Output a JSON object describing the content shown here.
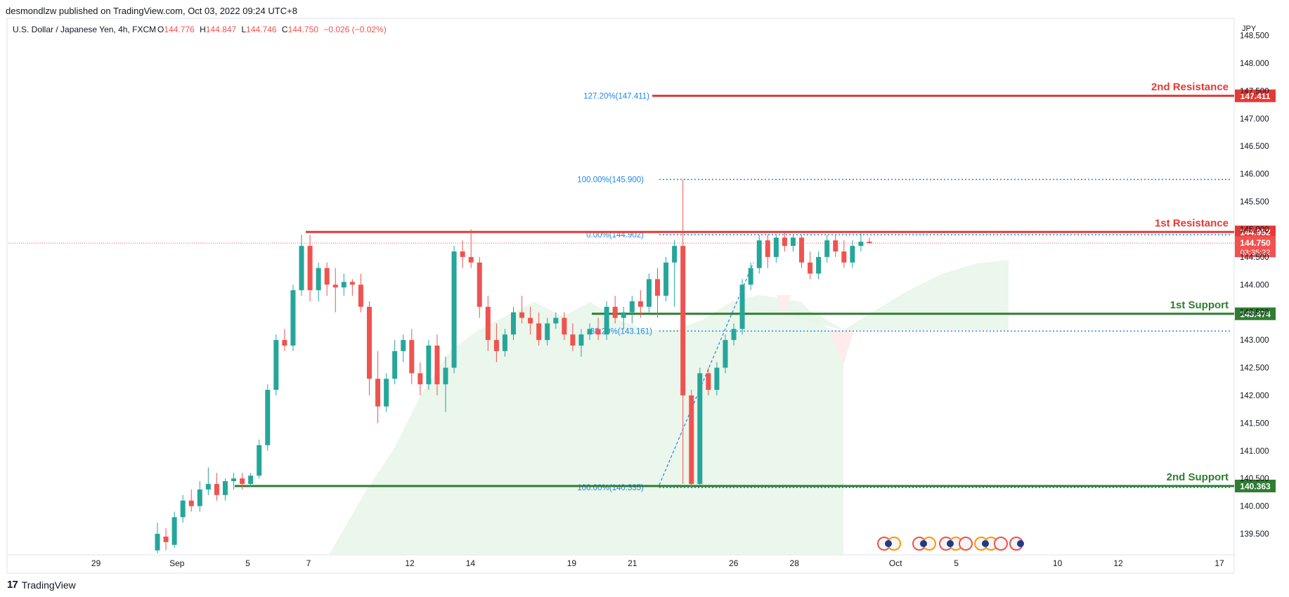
{
  "header": {
    "published_by": "desmondlzw published on TradingView.com, Oct 03, 2022 09:24 UTC+8"
  },
  "legend": {
    "symbol": "U.S. Dollar / Japanese Yen, 4h, FXCM",
    "o_label": "O",
    "o": "144.776",
    "h_label": "H",
    "h": "144.847",
    "l_label": "L",
    "l": "144.746",
    "c_label": "C",
    "c": "144.750",
    "change": "−0.026 (−0.02%)"
  },
  "watermark": {
    "text": "TradingView"
  },
  "colors": {
    "up": "#26a69a",
    "down": "#ef5350",
    "resistance": "#e53935",
    "support": "#2e7d32",
    "fib": "#1e88e5",
    "cloud_green": "#e8f5e9",
    "cloud_red": "#fdecea"
  },
  "chart_data": {
    "type": "candlestick",
    "title": "U.S. Dollar / Japanese Yen, 4h, FXCM",
    "y_axis_unit": "JPY",
    "ylim": [
      139.2,
      148.55
    ],
    "y_ticks": [
      "139.500",
      "140.000",
      "140.500",
      "141.000",
      "141.500",
      "142.000",
      "142.500",
      "143.000",
      "143.500",
      "144.000",
      "144.500",
      "145.000",
      "145.500",
      "146.000",
      "146.500",
      "147.000",
      "147.500",
      "148.000",
      "148.500"
    ],
    "x_ticks": [
      {
        "label": "29",
        "slot": 4
      },
      {
        "label": "Sep",
        "slot": 12
      },
      {
        "label": "5",
        "slot": 19
      },
      {
        "label": "7",
        "slot": 25
      },
      {
        "label": "12",
        "slot": 35
      },
      {
        "label": "14",
        "slot": 41
      },
      {
        "label": "19",
        "slot": 51
      },
      {
        "label": "21",
        "slot": 57
      },
      {
        "label": "26",
        "slot": 67
      },
      {
        "label": "28",
        "slot": 73
      },
      {
        "label": "Oct",
        "slot": 83
      },
      {
        "label": "5",
        "slot": 89
      },
      {
        "label": "10",
        "slot": 99
      },
      {
        "label": "12",
        "slot": 105
      },
      {
        "label": "17",
        "slot": 115
      }
    ],
    "candles": [
      {
        "o": 139.2,
        "h": 139.7,
        "l": 139.15,
        "c": 139.5
      },
      {
        "o": 139.45,
        "h": 139.6,
        "l": 139.2,
        "c": 139.35
      },
      {
        "o": 139.3,
        "h": 139.9,
        "l": 139.25,
        "c": 139.8
      },
      {
        "o": 139.8,
        "h": 140.2,
        "l": 139.7,
        "c": 140.1
      },
      {
        "o": 140.1,
        "h": 140.3,
        "l": 139.9,
        "c": 140.0
      },
      {
        "o": 140.0,
        "h": 140.45,
        "l": 139.9,
        "c": 140.3
      },
      {
        "o": 140.3,
        "h": 140.7,
        "l": 140.2,
        "c": 140.4
      },
      {
        "o": 140.4,
        "h": 140.6,
        "l": 140.1,
        "c": 140.2
      },
      {
        "o": 140.2,
        "h": 140.5,
        "l": 140.1,
        "c": 140.45
      },
      {
        "o": 140.45,
        "h": 140.6,
        "l": 140.3,
        "c": 140.5
      },
      {
        "o": 140.5,
        "h": 140.6,
        "l": 140.3,
        "c": 140.4
      },
      {
        "o": 140.4,
        "h": 140.6,
        "l": 140.35,
        "c": 140.55
      },
      {
        "o": 140.55,
        "h": 141.2,
        "l": 140.5,
        "c": 141.1
      },
      {
        "o": 141.1,
        "h": 142.2,
        "l": 141.0,
        "c": 142.1
      },
      {
        "o": 142.1,
        "h": 143.1,
        "l": 142.0,
        "c": 143.0
      },
      {
        "o": 143.0,
        "h": 143.2,
        "l": 142.8,
        "c": 142.9
      },
      {
        "o": 142.9,
        "h": 144.0,
        "l": 142.8,
        "c": 143.9
      },
      {
        "o": 143.9,
        "h": 144.9,
        "l": 143.8,
        "c": 144.7
      },
      {
        "o": 144.7,
        "h": 144.9,
        "l": 143.7,
        "c": 143.9
      },
      {
        "o": 143.9,
        "h": 144.4,
        "l": 143.7,
        "c": 144.3
      },
      {
        "o": 144.3,
        "h": 144.4,
        "l": 143.8,
        "c": 144.0
      },
      {
        "o": 144.0,
        "h": 144.3,
        "l": 143.5,
        "c": 143.95
      },
      {
        "o": 143.95,
        "h": 144.2,
        "l": 143.8,
        "c": 144.05
      },
      {
        "o": 144.05,
        "h": 144.1,
        "l": 143.8,
        "c": 144.0
      },
      {
        "o": 144.0,
        "h": 144.2,
        "l": 143.5,
        "c": 143.6
      },
      {
        "o": 143.6,
        "h": 143.7,
        "l": 142.0,
        "c": 142.3
      },
      {
        "o": 142.3,
        "h": 142.8,
        "l": 141.5,
        "c": 141.8
      },
      {
        "o": 141.8,
        "h": 142.4,
        "l": 141.7,
        "c": 142.3
      },
      {
        "o": 142.3,
        "h": 143.0,
        "l": 142.2,
        "c": 142.8
      },
      {
        "o": 142.8,
        "h": 143.1,
        "l": 142.6,
        "c": 143.0
      },
      {
        "o": 143.0,
        "h": 143.2,
        "l": 142.2,
        "c": 142.4
      },
      {
        "o": 142.4,
        "h": 142.6,
        "l": 142.0,
        "c": 142.2
      },
      {
        "o": 142.2,
        "h": 143.0,
        "l": 142.1,
        "c": 142.9
      },
      {
        "o": 142.9,
        "h": 143.1,
        "l": 142.0,
        "c": 142.2
      },
      {
        "o": 142.2,
        "h": 142.7,
        "l": 141.7,
        "c": 142.5
      },
      {
        "o": 142.5,
        "h": 144.7,
        "l": 142.4,
        "c": 144.6
      },
      {
        "o": 144.6,
        "h": 144.8,
        "l": 144.3,
        "c": 144.5
      },
      {
        "o": 144.5,
        "h": 145.0,
        "l": 144.3,
        "c": 144.4
      },
      {
        "o": 144.4,
        "h": 144.5,
        "l": 143.4,
        "c": 143.6
      },
      {
        "o": 143.6,
        "h": 143.8,
        "l": 142.8,
        "c": 143.0
      },
      {
        "o": 143.0,
        "h": 143.3,
        "l": 142.6,
        "c": 142.8
      },
      {
        "o": 142.8,
        "h": 143.2,
        "l": 142.7,
        "c": 143.1
      },
      {
        "o": 143.1,
        "h": 143.6,
        "l": 143.0,
        "c": 143.5
      },
      {
        "o": 143.5,
        "h": 143.8,
        "l": 143.3,
        "c": 143.4
      },
      {
        "o": 143.4,
        "h": 143.6,
        "l": 143.1,
        "c": 143.3
      },
      {
        "o": 143.3,
        "h": 143.5,
        "l": 142.9,
        "c": 143.0
      },
      {
        "o": 143.0,
        "h": 143.4,
        "l": 142.9,
        "c": 143.3
      },
      {
        "o": 143.3,
        "h": 143.5,
        "l": 143.2,
        "c": 143.4
      },
      {
        "o": 143.4,
        "h": 143.5,
        "l": 143.0,
        "c": 143.1
      },
      {
        "o": 143.1,
        "h": 143.3,
        "l": 142.8,
        "c": 142.9
      },
      {
        "o": 142.9,
        "h": 143.2,
        "l": 142.7,
        "c": 143.1
      },
      {
        "o": 143.1,
        "h": 143.3,
        "l": 143.0,
        "c": 143.2
      },
      {
        "o": 143.2,
        "h": 143.4,
        "l": 143.0,
        "c": 143.1
      },
      {
        "o": 143.1,
        "h": 143.7,
        "l": 143.0,
        "c": 143.6
      },
      {
        "o": 143.6,
        "h": 143.8,
        "l": 143.3,
        "c": 143.4
      },
      {
        "o": 143.4,
        "h": 143.6,
        "l": 143.2,
        "c": 143.5
      },
      {
        "o": 143.5,
        "h": 143.8,
        "l": 143.3,
        "c": 143.7
      },
      {
        "o": 143.7,
        "h": 143.9,
        "l": 143.4,
        "c": 143.6
      },
      {
        "o": 143.6,
        "h": 144.2,
        "l": 143.5,
        "c": 144.1
      },
      {
        "o": 144.1,
        "h": 144.3,
        "l": 143.4,
        "c": 143.8
      },
      {
        "o": 143.8,
        "h": 144.5,
        "l": 143.7,
        "c": 144.4
      },
      {
        "o": 144.4,
        "h": 144.8,
        "l": 143.6,
        "c": 144.7
      },
      {
        "o": 144.7,
        "h": 145.9,
        "l": 140.4,
        "c": 142.0
      },
      {
        "o": 142.0,
        "h": 142.1,
        "l": 140.35,
        "c": 140.4
      },
      {
        "o": 140.4,
        "h": 142.5,
        "l": 140.38,
        "c": 142.4
      },
      {
        "o": 142.4,
        "h": 142.5,
        "l": 142.0,
        "c": 142.1
      },
      {
        "o": 142.1,
        "h": 142.6,
        "l": 142.0,
        "c": 142.5
      },
      {
        "o": 142.5,
        "h": 143.1,
        "l": 142.4,
        "c": 143.0
      },
      {
        "o": 143.0,
        "h": 143.3,
        "l": 142.9,
        "c": 143.2
      },
      {
        "o": 143.2,
        "h": 144.1,
        "l": 143.1,
        "c": 144.0
      },
      {
        "o": 144.0,
        "h": 144.4,
        "l": 143.9,
        "c": 144.3
      },
      {
        "o": 144.3,
        "h": 144.9,
        "l": 144.2,
        "c": 144.8
      },
      {
        "o": 144.8,
        "h": 144.9,
        "l": 144.3,
        "c": 144.5
      },
      {
        "o": 144.5,
        "h": 144.9,
        "l": 144.4,
        "c": 144.85
      },
      {
        "o": 144.85,
        "h": 144.95,
        "l": 144.6,
        "c": 144.7
      },
      {
        "o": 144.7,
        "h": 144.9,
        "l": 144.6,
        "c": 144.85
      },
      {
        "o": 144.85,
        "h": 144.9,
        "l": 144.3,
        "c": 144.4
      },
      {
        "o": 144.4,
        "h": 144.6,
        "l": 144.1,
        "c": 144.2
      },
      {
        "o": 144.2,
        "h": 144.6,
        "l": 144.1,
        "c": 144.5
      },
      {
        "o": 144.5,
        "h": 144.9,
        "l": 144.4,
        "c": 144.8
      },
      {
        "o": 144.8,
        "h": 144.9,
        "l": 144.5,
        "c": 144.6
      },
      {
        "o": 144.6,
        "h": 144.8,
        "l": 144.3,
        "c": 144.4
      },
      {
        "o": 144.4,
        "h": 144.8,
        "l": 144.3,
        "c": 144.7
      },
      {
        "o": 144.7,
        "h": 144.95,
        "l": 144.6,
        "c": 144.776
      },
      {
        "o": 144.776,
        "h": 144.847,
        "l": 144.746,
        "c": 144.75
      }
    ],
    "levels": [
      {
        "name": "2nd Resistance",
        "value": 147.411,
        "label": "147.411",
        "kind": "resistance"
      },
      {
        "name": "1st Resistance",
        "value": 144.952,
        "label": "144.952",
        "kind": "resistance"
      },
      {
        "name": "1st Support",
        "value": 143.474,
        "label": "143.474",
        "kind": "support"
      },
      {
        "name": "2nd Support",
        "value": 140.363,
        "label": "140.363",
        "kind": "support"
      }
    ],
    "last_price": {
      "label": "144.750",
      "countdown": "03:35:22"
    },
    "fibonacci": [
      {
        "label": "127.20%(147.411)",
        "value": 147.411
      },
      {
        "label": "100.00%(145.900)",
        "value": 145.9
      },
      {
        "label": "0.00%(144.902)",
        "value": 144.902
      },
      {
        "label": "38.20%(143.161)",
        "value": 143.161
      },
      {
        "label": "100.00%(140.335)",
        "value": 140.335
      }
    ]
  }
}
